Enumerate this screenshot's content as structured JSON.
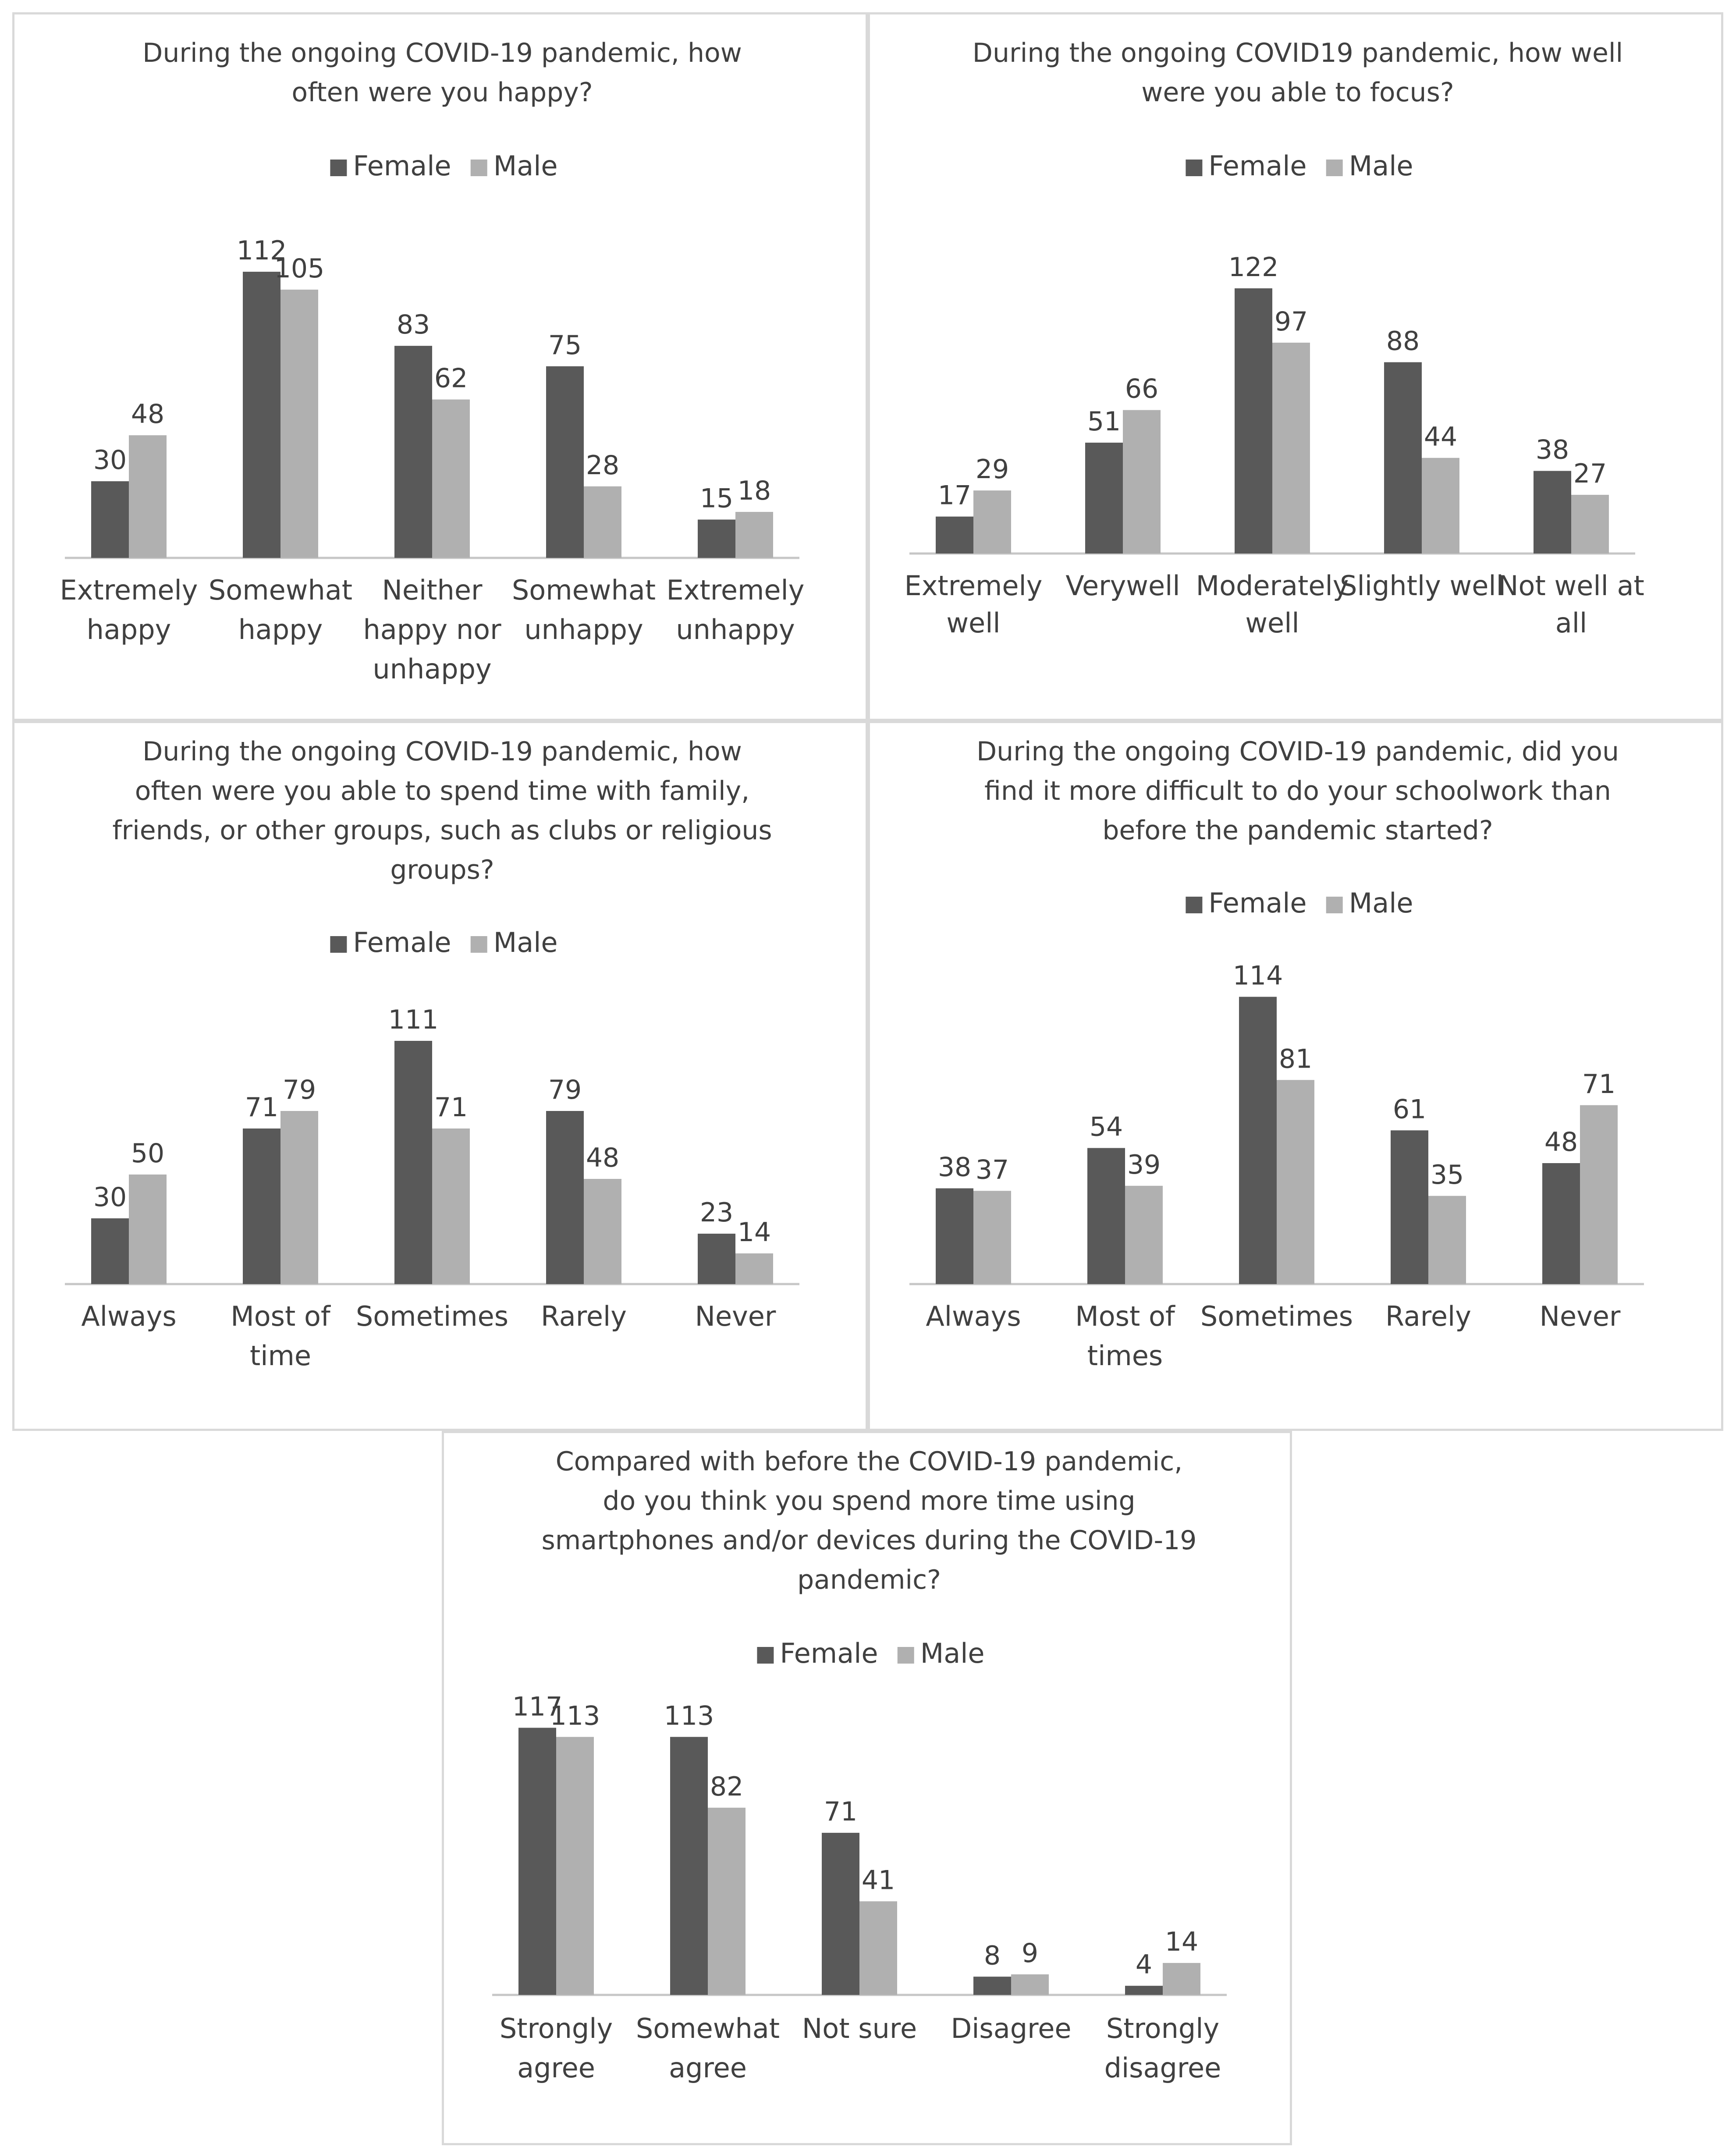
{
  "colors": {
    "female": "#595959",
    "male": "#b0b0b0",
    "axis": "#c6c6c6",
    "text": "#404040",
    "border": "#d9d9d9"
  },
  "legend": {
    "female_label": "Female",
    "male_label": "Male"
  },
  "chart_data": [
    {
      "type": "bar",
      "title": [
        "During the ongoing COVID-19 pandemic, how",
        "often were you happy?"
      ],
      "categories": [
        [
          "Extremely",
          "happy"
        ],
        [
          "Somewhat",
          "happy"
        ],
        [
          "Neither",
          "happy nor",
          "unhappy"
        ],
        [
          "Somewhat",
          "unhappy"
        ],
        [
          "Extremely",
          "unhappy"
        ]
      ],
      "series": [
        {
          "name": "Female",
          "values": [
            30,
            112,
            83,
            75,
            15
          ]
        },
        {
          "name": "Male",
          "values": [
            48,
            105,
            62,
            28,
            18
          ]
        }
      ],
      "ylim": [
        0,
        112
      ],
      "legend_position": "top",
      "grid": false
    },
    {
      "type": "bar",
      "title": [
        "During the ongoing COVID19 pandemic, how well",
        "were you able to focus?"
      ],
      "categories": [
        [
          "Extremely",
          "well"
        ],
        [
          "Verywell"
        ],
        [
          "Moderately",
          "well"
        ],
        [
          "Slightly well"
        ],
        [
          "Not well at",
          "all"
        ]
      ],
      "series": [
        {
          "name": "Female",
          "values": [
            17,
            51,
            122,
            88,
            38
          ]
        },
        {
          "name": "Male",
          "values": [
            29,
            66,
            97,
            44,
            27
          ]
        }
      ],
      "ylim": [
        0,
        122
      ],
      "legend_position": "top",
      "grid": false
    },
    {
      "type": "bar",
      "title": [
        "During the ongoing COVID-19 pandemic, how",
        "often were you able to spend time with family,",
        "friends, or other groups, such as clubs or religious",
        "groups?"
      ],
      "categories": [
        [
          "Always"
        ],
        [
          "Most of",
          "time"
        ],
        [
          "Sometimes"
        ],
        [
          "Rarely"
        ],
        [
          "Never"
        ]
      ],
      "series": [
        {
          "name": "Female",
          "values": [
            30,
            71,
            111,
            79,
            23
          ]
        },
        {
          "name": "Male",
          "values": [
            50,
            79,
            71,
            48,
            14
          ]
        }
      ],
      "ylim": [
        0,
        111
      ],
      "legend_position": "top",
      "grid": false
    },
    {
      "type": "bar",
      "title": [
        "During the ongoing COVID-19 pandemic, did you",
        "find it more difficult to do your schoolwork than",
        "before the pandemic started?"
      ],
      "categories": [
        [
          "Always"
        ],
        [
          "Most of",
          "times"
        ],
        [
          "Sometimes"
        ],
        [
          "Rarely"
        ],
        [
          "Never"
        ]
      ],
      "series": [
        {
          "name": "Female",
          "values": [
            38,
            54,
            114,
            61,
            48
          ]
        },
        {
          "name": "Male",
          "values": [
            37,
            39,
            81,
            35,
            71
          ]
        }
      ],
      "ylim": [
        0,
        114
      ],
      "legend_position": "top",
      "grid": false
    },
    {
      "type": "bar",
      "title": [
        "Compared with before the COVID-19 pandemic,",
        "do you think you spend more time using",
        "smartphones and/or devices during the COVID-19",
        "pandemic?"
      ],
      "categories": [
        [
          "Strongly",
          "agree"
        ],
        [
          "Somewhat",
          "agree"
        ],
        [
          "Not sure"
        ],
        [
          "Disagree"
        ],
        [
          "Strongly",
          "disagree"
        ]
      ],
      "series": [
        {
          "name": "Female",
          "values": [
            117,
            113,
            71,
            8,
            4
          ]
        },
        {
          "name": "Male",
          "values": [
            113,
            82,
            41,
            9,
            14
          ]
        }
      ],
      "ylim": [
        0,
        117
      ],
      "legend_position": "top",
      "grid": false
    }
  ]
}
